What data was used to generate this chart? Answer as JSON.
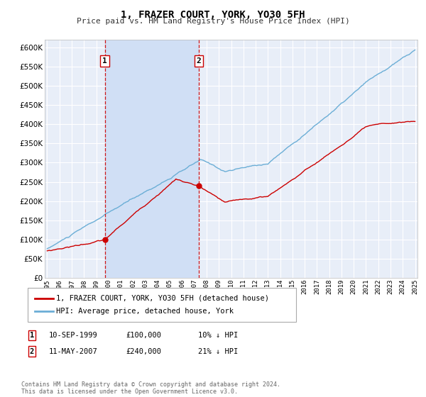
{
  "title": "1, FRAZER COURT, YORK, YO30 5FH",
  "subtitle": "Price paid vs. HM Land Registry's House Price Index (HPI)",
  "ylim": [
    0,
    620000
  ],
  "yticks": [
    0,
    50000,
    100000,
    150000,
    200000,
    250000,
    300000,
    350000,
    400000,
    450000,
    500000,
    550000,
    600000
  ],
  "hpi_color": "#6baed6",
  "price_color": "#cc0000",
  "vline_color": "#cc0000",
  "background_color": "#ffffff",
  "plot_bg_color": "#e8eef8",
  "highlight_color": "#d0dff5",
  "grid_color": "#ffffff",
  "legend_items": [
    "1, FRAZER COURT, YORK, YO30 5FH (detached house)",
    "HPI: Average price, detached house, York"
  ],
  "annotations": [
    {
      "label": "1",
      "date_idx": 1999.7,
      "price": 100000,
      "date_str": "10-SEP-1999",
      "price_str": "£100,000",
      "pct_str": "10% ↓ HPI"
    },
    {
      "label": "2",
      "date_idx": 2007.37,
      "price": 240000,
      "date_str": "11-MAY-2007",
      "price_str": "£240,000",
      "pct_str": "21% ↓ HPI"
    }
  ],
  "footnote": "Contains HM Land Registry data © Crown copyright and database right 2024.\nThis data is licensed under the Open Government Licence v3.0.",
  "xstart": 1995,
  "xend": 2025
}
